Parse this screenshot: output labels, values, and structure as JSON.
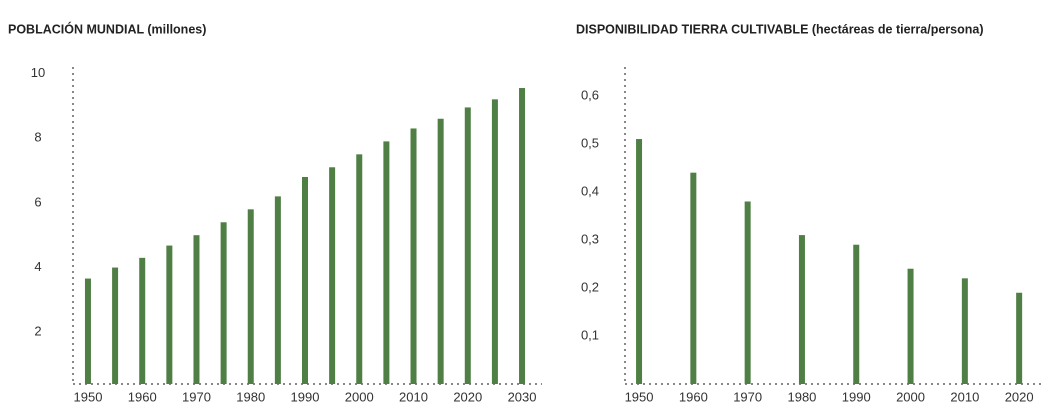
{
  "chart_data": [
    {
      "type": "bar",
      "title": "POBLACIÓN MUNDIAL (millones)",
      "categories": [
        "1950",
        null,
        "1960",
        null,
        "1970",
        null,
        "1980",
        null,
        "1990",
        null,
        "2000",
        null,
        "2010",
        null,
        "2020",
        null,
        "2030"
      ],
      "values": [
        3.66,
        4.0,
        4.3,
        4.68,
        5.0,
        5.4,
        5.8,
        6.2,
        6.8,
        7.1,
        7.5,
        7.9,
        8.3,
        8.6,
        8.95,
        9.2,
        9.55
      ],
      "color": "#4f7f45",
      "ylim": [
        0.4,
        10.2
      ],
      "yticks": [
        2,
        4,
        6,
        8,
        10
      ],
      "grid": false
    },
    {
      "type": "bar",
      "title": "DISPONIBILIDAD TIERRA CULTIVABLE (hectáreas de tierra/persona)",
      "categories": [
        "1950",
        "1960",
        "1970",
        "1980",
        "1990",
        "2000",
        "2010",
        "2020"
      ],
      "values": [
        0.51,
        0.44,
        0.38,
        0.31,
        0.29,
        0.24,
        0.22,
        0.19
      ],
      "color": "#4f7f45",
      "ylim": [
        0,
        0.66
      ],
      "yticks": [
        {
          "value": 0.1,
          "label": "0,1"
        },
        {
          "value": 0.2,
          "label": "0,2"
        },
        {
          "value": 0.3,
          "label": "0,3"
        },
        {
          "value": 0.4,
          "label": "0,4"
        },
        {
          "value": 0.5,
          "label": "0,5"
        },
        {
          "value": 0.6,
          "label": "0,6"
        }
      ],
      "grid": false
    }
  ]
}
